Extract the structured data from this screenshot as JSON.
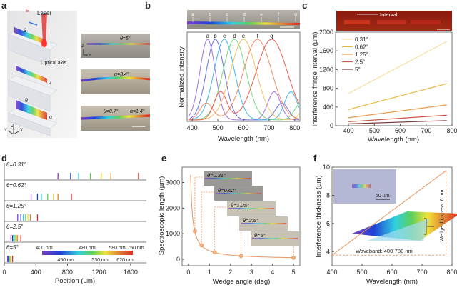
{
  "panels": {
    "a": {
      "label": "a",
      "laser": "Laser",
      "e_field": "E",
      "optical_axis": "Optical axis",
      "theta": "θ",
      "alpha": "α",
      "axes": {
        "x": "X",
        "y": "Y",
        "z": "Z"
      },
      "photos": [
        "θ=5°",
        "α=3.4°",
        "θ=0.7°",
        "α=1.4°"
      ]
    },
    "b": {
      "label": "b",
      "strip_points": [
        "a",
        "b",
        "c",
        "d",
        "e",
        "f",
        "g"
      ]
    },
    "c": {
      "label": "c",
      "strip_label": "Interval"
    },
    "d": {
      "label": "d"
    },
    "e": {
      "label": "e",
      "insets": [
        "θ=0.31°",
        "θ=0.62°",
        "θ=1.25°",
        "θ=2.5°",
        "θ=5°"
      ]
    },
    "f": {
      "label": "f",
      "scalebar": "50 µm",
      "waveband": "Waveband: 400-780 nm",
      "wedge": "Wedge thickness: 6 µm"
    }
  },
  "colors": {
    "violet": "#8a3fc4",
    "blue": "#1f3fd6",
    "cyan": "#2fd0e6",
    "green": "#5ccf5c",
    "yellow": "#f0e23a",
    "orange": "#e0822e",
    "red": "#e02a22",
    "accent": "#e8945a"
  },
  "chart_data": [
    {
      "id": "b",
      "type": "line",
      "title": "",
      "xlabel": "Wavelength (nm)",
      "ylabel": "Normalized intensity",
      "xlim": [
        380,
        820
      ],
      "xticks": [
        "400",
        "500",
        "600",
        "700",
        "800"
      ],
      "series": [
        {
          "name": "a",
          "peak": 460,
          "color": "#a070e0"
        },
        {
          "name": "b",
          "peak": 490,
          "color": "#6a70e8"
        },
        {
          "name": "c",
          "peak": 525,
          "color": "#40b8f0"
        },
        {
          "name": "d",
          "peak": 565,
          "color": "#70d878"
        },
        {
          "name": "e",
          "peak": 600,
          "color": "#f0c060"
        },
        {
          "name": "f",
          "peak": 655,
          "color": "#f08a60"
        },
        {
          "name": "g",
          "peak": 710,
          "color": "#ee5a50"
        }
      ]
    },
    {
      "id": "c",
      "type": "line",
      "xlabel": "Wavelength (nm)",
      "ylabel": "Interference fringe interval (µm)",
      "xlim": [
        350,
        800
      ],
      "ylim": [
        0,
        2000
      ],
      "xticks": [
        "400",
        "500",
        "600",
        "700",
        "800"
      ],
      "yticks": [
        "0",
        "400",
        "800",
        "1200",
        "1600",
        "2000"
      ],
      "series": [
        {
          "name": "0.31°",
          "x": [
            400,
            780
          ],
          "y": [
            690,
            1800
          ],
          "color": "#f5dfa0"
        },
        {
          "name": "0.62°",
          "x": [
            400,
            780
          ],
          "y": [
            345,
            900
          ],
          "color": "#e8b848"
        },
        {
          "name": "1.25°",
          "x": [
            400,
            780
          ],
          "y": [
            170,
            445
          ],
          "color": "#e89a50"
        },
        {
          "name": "2.5°",
          "x": [
            400,
            780
          ],
          "y": [
            85,
            225
          ],
          "color": "#c8584a"
        },
        {
          "name": "5°",
          "x": [
            400,
            780
          ],
          "y": [
            40,
            110
          ],
          "color": "#7a3a3a"
        }
      ]
    },
    {
      "id": "d",
      "type": "scatter",
      "xlabel": "Position (µm)",
      "xlim": [
        0,
        1800
      ],
      "xticks": [
        "0",
        "400",
        "800",
        "1200",
        "1600"
      ],
      "rows": [
        {
          "name": "θ=0.31°",
          "positions": [
            680,
            840,
            940,
            1090,
            1230,
            1350,
            1700
          ]
        },
        {
          "name": "θ=0.62°",
          "positions": [
            340,
            420,
            470,
            550,
            620,
            680,
            850
          ]
        },
        {
          "name": "θ=1.25°",
          "positions": [
            170,
            210,
            240,
            270,
            300,
            330,
            420
          ]
        },
        {
          "name": "θ=2.5°",
          "positions": [
            85,
            105,
            120,
            135,
            150,
            165,
            210
          ]
        },
        {
          "name": "θ=5°",
          "positions": [
            42,
            52,
            60,
            68,
            76,
            84,
            105
          ]
        }
      ],
      "spectrum_legend": {
        "top": [
          "400 nm",
          "480 nm",
          "580 nm",
          "750 nm"
        ],
        "bottom": [
          "450 nm",
          "530 nm",
          "620 nm"
        ]
      }
    },
    {
      "id": "e",
      "type": "line",
      "xlabel": "Wedge angle (deg)",
      "ylabel": "Spectroscopic length (µm)",
      "xlim": [
        -0.3,
        5.3
      ],
      "ylim": [
        -250,
        3600
      ],
      "xticks": [
        "0",
        "1",
        "2",
        "3",
        "4",
        "5"
      ],
      "yticks": [
        "0",
        "1000",
        "2000",
        "3000"
      ],
      "points": {
        "x": [
          0.31,
          0.62,
          1.25,
          2.5,
          5
        ],
        "y": [
          1100,
          550,
          270,
          130,
          60
        ]
      }
    },
    {
      "id": "f",
      "type": "line",
      "xlabel": "Wavelength (nm)",
      "ylabel": "Interference thickness (µm)",
      "xlim": [
        400,
        800
      ],
      "ylim": [
        3,
        10
      ],
      "xticks": [
        "400",
        "500",
        "600",
        "700",
        "800"
      ],
      "yticks": [
        "4",
        "6",
        "8",
        "10"
      ],
      "series": [
        {
          "name": "thickness",
          "x": [
            400,
            780
          ],
          "y": [
            3.75,
            9.75
          ]
        }
      ]
    }
  ]
}
